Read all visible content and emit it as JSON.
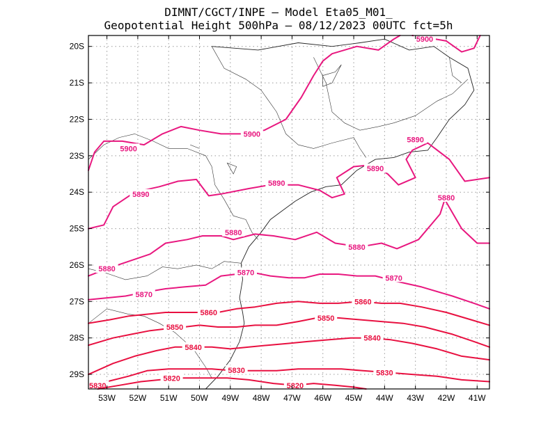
{
  "header": {
    "line1": "DIMNT/CGCT/INPE –  Model Eta05_M01_",
    "line2": "Geopotential Height 500hPa –  08/12/2023 00UTC fct=5h"
  },
  "map": {
    "lon_min": -53.6,
    "lon_max": -40.6,
    "lat_min": -29.4,
    "lat_max": -19.7,
    "lon_ticks": [
      -53,
      -52,
      -51,
      -50,
      -49,
      -48,
      -47,
      -46,
      -45,
      -44,
      -43,
      -42,
      -41
    ],
    "lon_labels": [
      "53W",
      "52W",
      "51W",
      "50W",
      "49W",
      "48W",
      "47W",
      "46W",
      "45W",
      "44W",
      "43W",
      "42W",
      "41W"
    ],
    "lat_ticks": [
      -20,
      -21,
      -22,
      -23,
      -24,
      -25,
      -26,
      -27,
      -28,
      -29
    ],
    "lat_labels": [
      "20S",
      "21S",
      "22S",
      "23S",
      "24S",
      "25S",
      "26S",
      "27S",
      "28S",
      "29S"
    ],
    "contour_color_upper": "#e8177f",
    "contour_color_lower": "#e81040"
  },
  "contours": [
    {
      "value": 5900,
      "label": "5900",
      "color": "#e8177f",
      "points": [
        [
          -53.6,
          -23.4
        ],
        [
          -53.4,
          -22.9
        ],
        [
          -53.1,
          -22.6
        ],
        [
          -52.5,
          -22.6
        ],
        [
          -51.8,
          -22.7
        ],
        [
          -51.2,
          -22.4
        ],
        [
          -50.6,
          -22.2
        ],
        [
          -50.0,
          -22.3
        ],
        [
          -49.3,
          -22.4
        ],
        [
          -48.6,
          -22.4
        ],
        [
          -47.9,
          -22.3
        ],
        [
          -47.2,
          -22.0
        ],
        [
          -46.7,
          -21.4
        ],
        [
          -46.3,
          -20.8
        ],
        [
          -46.0,
          -20.4
        ],
        [
          -45.7,
          -20.2
        ],
        [
          -44.9,
          -20.0
        ],
        [
          -44.2,
          -20.1
        ],
        [
          -43.7,
          -19.8
        ],
        [
          -43.5,
          -19.7
        ]
      ],
      "labels": [
        {
          "lon": -52.3,
          "lat": -22.8
        },
        {
          "lon": -48.3,
          "lat": -22.4
        }
      ]
    },
    {
      "value": 5900,
      "label": "5900",
      "color": "#e8177f",
      "points": [
        [
          -43.1,
          -19.7
        ],
        [
          -42.7,
          -19.75
        ],
        [
          -42.0,
          -19.85
        ],
        [
          -41.5,
          -20.15
        ],
        [
          -41.1,
          -20.05
        ],
        [
          -40.9,
          -19.7
        ]
      ],
      "labels": [
        {
          "lon": -42.7,
          "lat": -19.8
        }
      ]
    },
    {
      "value": 5890,
      "label": "5890",
      "color": "#e8177f",
      "points": [
        [
          -53.6,
          -25.0
        ],
        [
          -53.1,
          -24.9
        ],
        [
          -52.8,
          -24.4
        ],
        [
          -52.1,
          -24.0
        ],
        [
          -51.3,
          -23.85
        ],
        [
          -50.7,
          -23.7
        ],
        [
          -50.1,
          -23.65
        ],
        [
          -49.7,
          -24.1
        ],
        [
          -49.3,
          -24.05
        ],
        [
          -48.4,
          -23.9
        ],
        [
          -47.7,
          -23.8
        ],
        [
          -46.8,
          -23.8
        ],
        [
          -46.1,
          -23.95
        ],
        [
          -45.7,
          -24.15
        ],
        [
          -45.3,
          -24.05
        ],
        [
          -45.55,
          -23.6
        ],
        [
          -45.0,
          -23.3
        ],
        [
          -44.4,
          -23.25
        ],
        [
          -43.9,
          -23.5
        ],
        [
          -43.55,
          -23.8
        ],
        [
          -43.0,
          -23.6
        ],
        [
          -43.3,
          -23.1
        ],
        [
          -43.1,
          -22.85
        ],
        [
          -42.6,
          -22.65
        ],
        [
          -41.9,
          -23.1
        ],
        [
          -41.4,
          -23.7
        ],
        [
          -40.6,
          -23.6
        ]
      ],
      "labels": [
        {
          "lon": -51.9,
          "lat": -24.05
        },
        {
          "lon": -47.5,
          "lat": -23.75
        },
        {
          "lon": -44.3,
          "lat": -23.35
        },
        {
          "lon": -43.0,
          "lat": -22.55
        }
      ]
    },
    {
      "value": 5880,
      "label": "5880",
      "color": "#e8177f",
      "points": [
        [
          -53.6,
          -26.3
        ],
        [
          -53.0,
          -26.1
        ],
        [
          -52.3,
          -25.9
        ],
        [
          -51.6,
          -25.7
        ],
        [
          -51.1,
          -25.4
        ],
        [
          -50.4,
          -25.3
        ],
        [
          -49.9,
          -25.2
        ],
        [
          -49.3,
          -25.2
        ],
        [
          -48.9,
          -25.3
        ],
        [
          -48.2,
          -25.15
        ],
        [
          -47.6,
          -25.2
        ],
        [
          -46.9,
          -25.3
        ],
        [
          -46.2,
          -25.1
        ],
        [
          -45.6,
          -25.4
        ],
        [
          -44.8,
          -25.5
        ],
        [
          -44.1,
          -25.4
        ],
        [
          -43.6,
          -25.55
        ],
        [
          -42.9,
          -25.3
        ],
        [
          -42.2,
          -24.6
        ],
        [
          -42.05,
          -24.2
        ],
        [
          -41.5,
          -25.0
        ],
        [
          -41.0,
          -25.4
        ],
        [
          -40.6,
          -25.4
        ]
      ],
      "labels": [
        {
          "lon": -53.0,
          "lat": -26.1
        },
        {
          "lon": -48.9,
          "lat": -25.1
        },
        {
          "lon": -44.9,
          "lat": -25.5
        },
        {
          "lon": -42.0,
          "lat": -24.15
        }
      ]
    },
    {
      "value": 5870,
      "label": "5870",
      "color": "#e8177f",
      "points": [
        [
          -53.6,
          -26.95
        ],
        [
          -53.0,
          -26.9
        ],
        [
          -52.4,
          -26.85
        ],
        [
          -51.8,
          -26.75
        ],
        [
          -51.1,
          -26.65
        ],
        [
          -50.5,
          -26.6
        ],
        [
          -49.8,
          -26.55
        ],
        [
          -49.3,
          -26.3
        ],
        [
          -48.8,
          -26.25
        ],
        [
          -48.3,
          -26.2
        ],
        [
          -47.7,
          -26.3
        ],
        [
          -47.1,
          -26.35
        ],
        [
          -46.6,
          -26.35
        ],
        [
          -46.1,
          -26.25
        ],
        [
          -45.5,
          -26.25
        ],
        [
          -44.9,
          -26.3
        ],
        [
          -44.3,
          -26.3
        ],
        [
          -43.6,
          -26.45
        ],
        [
          -42.8,
          -26.6
        ],
        [
          -41.8,
          -26.85
        ],
        [
          -41.1,
          -27.05
        ],
        [
          -40.6,
          -27.2
        ]
      ],
      "labels": [
        {
          "lon": -51.8,
          "lat": -26.8
        },
        {
          "lon": -48.5,
          "lat": -26.2
        },
        {
          "lon": -43.7,
          "lat": -26.35
        }
      ]
    },
    {
      "value": 5860,
      "label": "5860",
      "color": "#e81040",
      "points": [
        [
          -53.6,
          -27.6
        ],
        [
          -52.9,
          -27.5
        ],
        [
          -52.3,
          -27.4
        ],
        [
          -51.7,
          -27.35
        ],
        [
          -51.1,
          -27.3
        ],
        [
          -50.6,
          -27.3
        ],
        [
          -50.0,
          -27.3
        ],
        [
          -49.4,
          -27.3
        ],
        [
          -48.8,
          -27.2
        ],
        [
          -48.2,
          -27.15
        ],
        [
          -47.5,
          -27.05
        ],
        [
          -46.8,
          -27.0
        ],
        [
          -46.1,
          -27.05
        ],
        [
          -45.5,
          -27.05
        ],
        [
          -44.8,
          -27.0
        ],
        [
          -44.1,
          -27.05
        ],
        [
          -43.5,
          -27.05
        ],
        [
          -42.8,
          -27.15
        ],
        [
          -42.0,
          -27.3
        ],
        [
          -41.2,
          -27.5
        ],
        [
          -40.6,
          -27.65
        ]
      ],
      "labels": [
        {
          "lon": -49.7,
          "lat": -27.3
        },
        {
          "lon": -44.7,
          "lat": -27.0
        }
      ]
    },
    {
      "value": 5850,
      "label": "5850",
      "color": "#e81040",
      "points": [
        [
          -53.6,
          -28.2
        ],
        [
          -52.8,
          -28.0
        ],
        [
          -52.2,
          -27.9
        ],
        [
          -51.6,
          -27.8
        ],
        [
          -51.1,
          -27.75
        ],
        [
          -50.5,
          -27.7
        ],
        [
          -50.0,
          -27.65
        ],
        [
          -49.4,
          -27.7
        ],
        [
          -48.8,
          -27.7
        ],
        [
          -48.2,
          -27.65
        ],
        [
          -47.5,
          -27.65
        ],
        [
          -46.8,
          -27.55
        ],
        [
          -46.2,
          -27.45
        ],
        [
          -45.5,
          -27.45
        ],
        [
          -44.8,
          -27.5
        ],
        [
          -44.1,
          -27.55
        ],
        [
          -43.4,
          -27.6
        ],
        [
          -42.7,
          -27.7
        ],
        [
          -41.8,
          -27.9
        ],
        [
          -41.1,
          -28.1
        ],
        [
          -40.6,
          -28.25
        ]
      ],
      "labels": [
        {
          "lon": -50.8,
          "lat": -27.7
        },
        {
          "lon": -45.9,
          "lat": -27.45
        }
      ]
    },
    {
      "value": 5840,
      "label": "5840",
      "color": "#e81040",
      "points": [
        [
          -53.6,
          -29.0
        ],
        [
          -52.8,
          -28.7
        ],
        [
          -52.1,
          -28.5
        ],
        [
          -51.4,
          -28.35
        ],
        [
          -50.8,
          -28.25
        ],
        [
          -50.2,
          -28.25
        ],
        [
          -49.6,
          -28.25
        ],
        [
          -49.0,
          -28.3
        ],
        [
          -48.4,
          -28.25
        ],
        [
          -47.8,
          -28.2
        ],
        [
          -47.1,
          -28.15
        ],
        [
          -46.5,
          -28.1
        ],
        [
          -45.8,
          -28.05
        ],
        [
          -45.1,
          -28.0
        ],
        [
          -44.5,
          -28.0
        ],
        [
          -43.8,
          -28.05
        ],
        [
          -43.1,
          -28.15
        ],
        [
          -42.3,
          -28.3
        ],
        [
          -41.5,
          -28.5
        ],
        [
          -40.6,
          -28.6
        ]
      ],
      "labels": [
        {
          "lon": -50.2,
          "lat": -28.25
        },
        {
          "lon": -44.4,
          "lat": -28.0
        }
      ]
    },
    {
      "value": 5830,
      "label": "5830",
      "color": "#e81040",
      "points": [
        [
          -53.6,
          -29.35
        ],
        [
          -53.0,
          -29.2
        ],
        [
          -52.3,
          -29.05
        ],
        [
          -51.7,
          -28.9
        ],
        [
          -51.0,
          -28.85
        ],
        [
          -50.3,
          -28.85
        ],
        [
          -49.6,
          -28.85
        ],
        [
          -48.9,
          -28.9
        ],
        [
          -48.2,
          -28.9
        ],
        [
          -47.5,
          -28.9
        ],
        [
          -46.8,
          -28.85
        ],
        [
          -46.1,
          -28.85
        ],
        [
          -45.4,
          -28.85
        ],
        [
          -44.7,
          -28.9
        ],
        [
          -43.9,
          -28.95
        ],
        [
          -43.1,
          -29.0
        ],
        [
          -42.3,
          -29.05
        ],
        [
          -41.5,
          -29.15
        ],
        [
          -40.6,
          -29.2
        ]
      ],
      "labels": [
        {
          "lon": -53.3,
          "lat": -29.3
        },
        {
          "lon": -48.8,
          "lat": -28.88
        },
        {
          "lon": -44.0,
          "lat": -28.95
        }
      ]
    },
    {
      "value": 5820,
      "label": "5820",
      "color": "#e81040",
      "points": [
        [
          -53.3,
          -29.4
        ],
        [
          -52.6,
          -29.3
        ],
        [
          -51.9,
          -29.2
        ],
        [
          -51.3,
          -29.15
        ],
        [
          -50.6,
          -29.1
        ],
        [
          -49.8,
          -29.1
        ],
        [
          -49.1,
          -29.1
        ],
        [
          -48.4,
          -29.15
        ],
        [
          -47.6,
          -29.25
        ],
        [
          -46.9,
          -29.3
        ],
        [
          -46.3,
          -29.25
        ],
        [
          -45.6,
          -29.3
        ],
        [
          -45.0,
          -29.35
        ],
        [
          -44.6,
          -29.4
        ]
      ],
      "labels": [
        {
          "lon": -50.9,
          "lat": -29.1
        },
        {
          "lon": -46.9,
          "lat": -29.3
        }
      ]
    }
  ],
  "coast": [
    [
      -49.6,
      -20.0
    ],
    [
      -48.1,
      -20.1
    ],
    [
      -46.8,
      -19.9
    ],
    [
      -45.7,
      -20.0
    ],
    [
      -44.8,
      -19.9
    ],
    [
      -44.0,
      -19.8
    ],
    [
      -43.2,
      -20.1
    ],
    [
      -42.4,
      -20.0
    ],
    [
      -41.9,
      -20.3
    ],
    [
      -41.3,
      -20.6
    ],
    [
      -41.1,
      -21.2
    ],
    [
      -41.4,
      -21.6
    ],
    [
      -41.9,
      -22.0
    ],
    [
      -42.3,
      -22.5
    ],
    [
      -42.6,
      -22.85
    ],
    [
      -43.2,
      -22.9
    ],
    [
      -43.7,
      -23.05
    ],
    [
      -44.3,
      -23.1
    ],
    [
      -44.9,
      -23.4
    ],
    [
      -45.4,
      -23.8
    ],
    [
      -45.9,
      -23.85
    ],
    [
      -46.4,
      -24.0
    ],
    [
      -46.9,
      -24.25
    ],
    [
      -47.3,
      -24.5
    ],
    [
      -47.7,
      -24.75
    ],
    [
      -48.0,
      -25.1
    ],
    [
      -48.4,
      -25.5
    ],
    [
      -48.65,
      -25.95
    ],
    [
      -48.6,
      -26.4
    ],
    [
      -48.7,
      -26.9
    ],
    [
      -48.6,
      -27.3
    ],
    [
      -48.55,
      -27.6
    ],
    [
      -48.7,
      -28.1
    ],
    [
      -49.0,
      -28.6
    ],
    [
      -49.4,
      -29.05
    ],
    [
      -49.8,
      -29.4
    ]
  ],
  "borders": [
    [
      [
        -53.6,
        -23.1
      ],
      [
        -53.1,
        -22.7
      ],
      [
        -52.6,
        -22.5
      ],
      [
        -52.1,
        -22.4
      ],
      [
        -51.5,
        -22.6
      ],
      [
        -51.0,
        -22.8
      ],
      [
        -50.4,
        -22.8
      ],
      [
        -49.8,
        -23.0
      ],
      [
        -49.6,
        -23.3
      ],
      [
        -49.5,
        -23.8
      ],
      [
        -49.2,
        -24.2
      ],
      [
        -48.9,
        -24.65
      ],
      [
        -48.5,
        -24.75
      ],
      [
        -48.3,
        -25.1
      ],
      [
        -48.1,
        -25.3
      ]
    ],
    [
      [
        -53.6,
        -26.1
      ],
      [
        -53.1,
        -26.2
      ],
      [
        -52.4,
        -26.4
      ],
      [
        -51.7,
        -26.3
      ],
      [
        -51.2,
        -26.05
      ],
      [
        -50.7,
        -26.1
      ],
      [
        -50.1,
        -26.0
      ],
      [
        -49.6,
        -26.1
      ],
      [
        -49.2,
        -25.9
      ],
      [
        -48.65,
        -25.95
      ]
    ],
    [
      [
        -53.6,
        -27.6
      ],
      [
        -53.0,
        -27.2
      ],
      [
        -52.3,
        -27.35
      ],
      [
        -51.8,
        -27.4
      ],
      [
        -51.3,
        -27.6
      ],
      [
        -50.8,
        -27.85
      ],
      [
        -50.2,
        -28.3
      ],
      [
        -49.8,
        -28.8
      ],
      [
        -49.6,
        -29.1
      ]
    ],
    [
      [
        -49.6,
        -20.0
      ],
      [
        -49.2,
        -20.6
      ],
      [
        -48.5,
        -20.9
      ],
      [
        -48.0,
        -21.2
      ],
      [
        -47.5,
        -21.8
      ],
      [
        -47.2,
        -22.4
      ],
      [
        -46.8,
        -22.7
      ],
      [
        -46.3,
        -22.8
      ],
      [
        -45.7,
        -22.65
      ],
      [
        -45.0,
        -22.5
      ],
      [
        -44.8,
        -22.8
      ],
      [
        -44.6,
        -23.05
      ]
    ],
    [
      [
        -46.3,
        -20.3
      ],
      [
        -45.9,
        -21.0
      ],
      [
        -45.7,
        -21.8
      ],
      [
        -45.3,
        -22.1
      ],
      [
        -44.8,
        -22.3
      ],
      [
        -44.2,
        -22.2
      ],
      [
        -43.7,
        -22.1
      ],
      [
        -43.0,
        -21.9
      ],
      [
        -42.3,
        -21.5
      ],
      [
        -41.8,
        -21.3
      ],
      [
        -41.3,
        -20.9
      ]
    ],
    [
      [
        -41.9,
        -20.3
      ],
      [
        -41.8,
        -20.8
      ],
      [
        -41.5,
        -21.0
      ]
    ]
  ],
  "lakes": [
    [
      [
        -46.0,
        -20.8
      ],
      [
        -45.6,
        -20.7
      ],
      [
        -45.4,
        -20.5
      ],
      [
        -45.7,
        -21.0
      ],
      [
        -46.0,
        -21.1
      ]
    ],
    [
      [
        -49.1,
        -23.2
      ],
      [
        -48.8,
        -23.3
      ],
      [
        -48.9,
        -23.5
      ]
    ],
    [
      [
        -50.3,
        -22.7
      ],
      [
        -50.0,
        -22.8
      ]
    ]
  ]
}
